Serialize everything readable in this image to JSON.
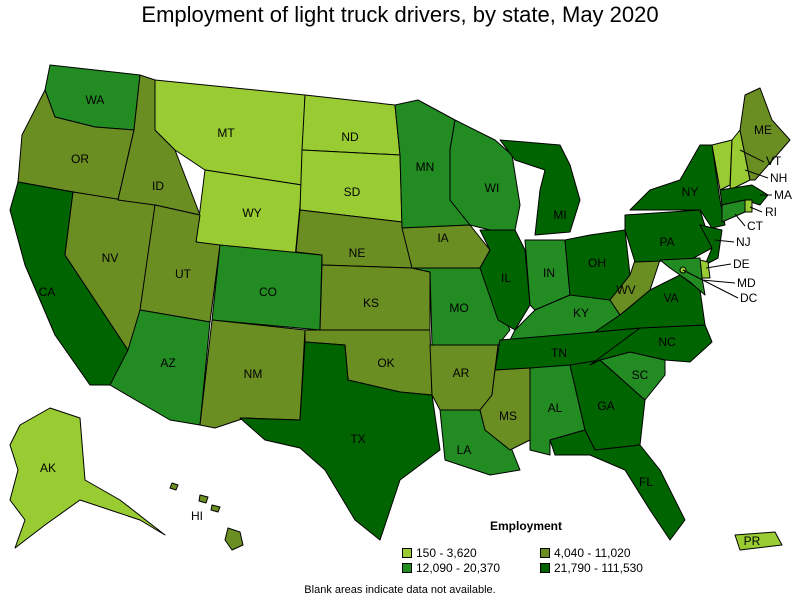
{
  "title": "Employment of light truck drivers, by state, May 2020",
  "legend": {
    "title": "Employment",
    "bins": [
      {
        "label": "150 - 3,620",
        "color": "#99cc33"
      },
      {
        "label": "4,040 - 11,020",
        "color": "#6b8e23"
      },
      {
        "label": "12,090 - 20,370",
        "color": "#228b22"
      },
      {
        "label": "21,790 - 111,530",
        "color": "#006400"
      }
    ]
  },
  "note": "Blank areas indicate data not available.",
  "states": {
    "WA": 2,
    "OR": 1,
    "CA": 3,
    "NV": 1,
    "ID": 1,
    "MT": 0,
    "WY": 0,
    "UT": 1,
    "AZ": 2,
    "CO": 2,
    "NM": 1,
    "ND": 0,
    "SD": 0,
    "NE": 1,
    "KS": 1,
    "OK": 1,
    "TX": 3,
    "MN": 2,
    "IA": 1,
    "MO": 2,
    "AR": 1,
    "LA": 2,
    "WI": 2,
    "IL": 3,
    "MI": 3,
    "IN": 2,
    "OH": 3,
    "KY": 2,
    "TN": 3,
    "MS": 1,
    "AL": 2,
    "GA": 3,
    "FL": 3,
    "SC": 2,
    "NC": 3,
    "VA": 3,
    "WV": 1,
    "PA": 3,
    "NY": 3,
    "VT": 0,
    "NH": 0,
    "ME": 1,
    "MA": 3,
    "RI": 0,
    "CT": 2,
    "NJ": 3,
    "DE": 0,
    "MD": 2,
    "DC": 0,
    "AK": 0,
    "HI": 1,
    "PR": 0
  }
}
